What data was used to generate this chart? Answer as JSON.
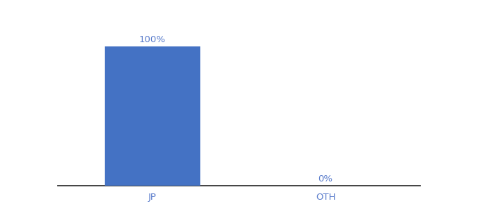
{
  "categories": [
    "JP",
    "OTH"
  ],
  "values": [
    100,
    0
  ],
  "bar_color": "#4472c4",
  "label_color": "#5b7dcc",
  "tick_label_color": "#5b7dcc",
  "background_color": "#ffffff",
  "axis_line_color": "#222222",
  "bar_width": 0.55,
  "ylim": [
    0,
    115
  ],
  "value_labels": [
    "100%",
    "0%"
  ],
  "xlabel_fontsize": 9.5,
  "value_label_fontsize": 9.5,
  "x_positions": [
    0,
    1
  ],
  "xlim": [
    -0.55,
    1.55
  ]
}
